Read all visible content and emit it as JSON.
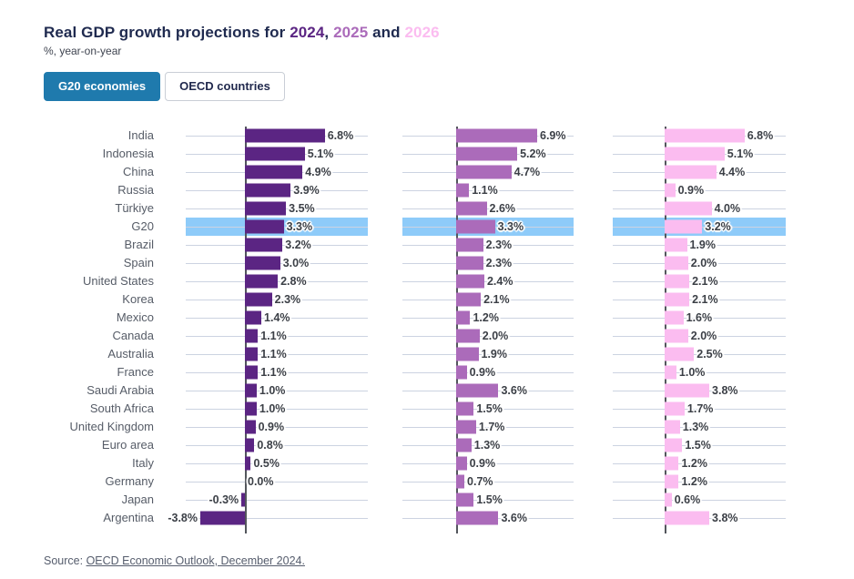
{
  "title": {
    "prefix": "Real GDP growth projections for ",
    "year_2024": "2024",
    "sep1": ", ",
    "year_2025": "2025",
    "sep2": " and ",
    "year_2026": "2026"
  },
  "subtitle": "%, year-on-year",
  "tabs": [
    {
      "label": "G20 economies",
      "active": true
    },
    {
      "label": "OECD countries",
      "active": false
    }
  ],
  "source": {
    "prefix": "Source: ",
    "link_text": "OECD Economic Outlook, December 2024."
  },
  "colors": {
    "title_navy": "#1f2a4f",
    "bar_2024": "#5b2583",
    "bar_2025": "#ab6bba",
    "bar_2026": "#fbbcf0",
    "highlight_band": "#8ecbf9",
    "active_tab": "#1f7aad",
    "gridline": "#ccd3e1",
    "axis": "#53565c"
  },
  "chart_data": {
    "type": "bar",
    "orientation": "horizontal",
    "title": "Real GDP growth projections for 2024, 2025 and 2026",
    "subtitle": "%, year-on-year",
    "value_suffix": "%",
    "xlim": [
      -5,
      10.5
    ],
    "grid": "horizontal row lines per category, vertical zero axis per panel",
    "legend_position": "none (years colored in title)",
    "highlight_category": "G20",
    "categories": [
      "India",
      "Indonesia",
      "China",
      "Russia",
      "Türkiye",
      "G20",
      "Brazil",
      "Spain",
      "United States",
      "Korea",
      "Mexico",
      "Canada",
      "Australia",
      "France",
      "Saudi Arabia",
      "South Africa",
      "United Kingdom",
      "Euro area",
      "Italy",
      "Germany",
      "Japan",
      "Argentina"
    ],
    "series": [
      {
        "name": "2024",
        "color": "#5b2583",
        "values": [
          6.8,
          5.1,
          4.9,
          3.9,
          3.5,
          3.3,
          3.2,
          3.0,
          2.8,
          2.3,
          1.4,
          1.1,
          1.1,
          1.1,
          1.0,
          1.0,
          0.9,
          0.8,
          0.5,
          0.0,
          -0.3,
          -3.8
        ]
      },
      {
        "name": "2025",
        "color": "#ab6bba",
        "values": [
          6.9,
          5.2,
          4.7,
          1.1,
          2.6,
          3.3,
          2.3,
          2.3,
          2.4,
          2.1,
          1.2,
          2.0,
          1.9,
          0.9,
          3.6,
          1.5,
          1.7,
          1.3,
          0.9,
          0.7,
          1.5,
          3.6
        ]
      },
      {
        "name": "2026",
        "color": "#fbbcf0",
        "values": [
          6.8,
          5.1,
          4.4,
          0.9,
          4.0,
          3.2,
          1.9,
          2.0,
          2.1,
          2.1,
          1.6,
          2.0,
          2.5,
          1.0,
          3.8,
          1.7,
          1.3,
          1.5,
          1.2,
          1.2,
          0.6,
          3.8
        ]
      }
    ]
  }
}
